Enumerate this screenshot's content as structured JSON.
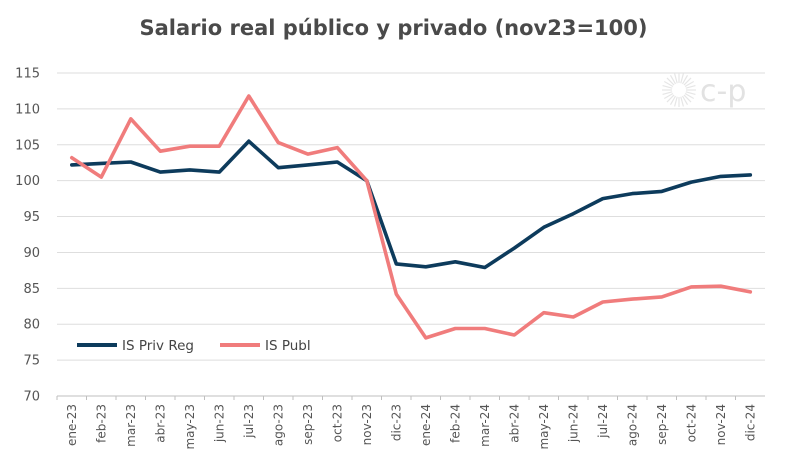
{
  "chart_data": {
    "type": "line",
    "title": "Salario real público y privado (nov23=100)",
    "ylim": [
      70,
      115
    ],
    "yticks": [
      70,
      75,
      80,
      85,
      90,
      95,
      100,
      105,
      110,
      115
    ],
    "grid": true,
    "legend_position": "lower-left",
    "categories": [
      "ene-23",
      "feb-23",
      "mar-23",
      "abr-23",
      "may-23",
      "jun-23",
      "jul-23",
      "ago-23",
      "sep-23",
      "oct-23",
      "nov-23",
      "dic-23",
      "ene-24",
      "feb-24",
      "mar-24",
      "abr-24",
      "may-24",
      "jun-24",
      "jul-24",
      "ago-24",
      "sep-24",
      "oct-24",
      "nov-24",
      "dic-24"
    ],
    "series": [
      {
        "name": "IS Priv Reg",
        "color": "#0d3b5c",
        "values": [
          102.2,
          102.4,
          102.6,
          101.2,
          101.5,
          101.2,
          105.5,
          101.8,
          102.2,
          102.6,
          100.0,
          88.4,
          88.0,
          88.7,
          87.9,
          90.6,
          93.5,
          95.4,
          97.5,
          98.2,
          98.5,
          99.8,
          100.6,
          100.8
        ]
      },
      {
        "name": "IS Publ",
        "color": "#f07c7c",
        "values": [
          103.2,
          100.5,
          108.6,
          104.1,
          104.8,
          104.8,
          111.8,
          105.3,
          103.7,
          104.6,
          100.0,
          84.2,
          78.1,
          79.4,
          79.4,
          78.5,
          81.6,
          81.0,
          83.1,
          83.5,
          83.8,
          85.2,
          85.3,
          84.5
        ]
      }
    ]
  },
  "logo": {
    "text": "c-p"
  }
}
